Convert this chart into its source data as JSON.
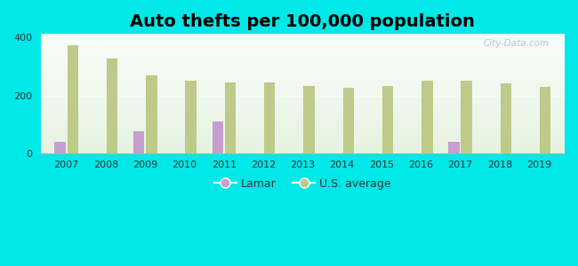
{
  "title": "Auto thefts per 100,000 population",
  "years": [
    2007,
    2008,
    2009,
    2010,
    2011,
    2012,
    2013,
    2014,
    2015,
    2016,
    2017,
    2018,
    2019
  ],
  "lamar": [
    40,
    0,
    78,
    0,
    112,
    0,
    0,
    0,
    0,
    0,
    42,
    0,
    0
  ],
  "us_avg": [
    372,
    325,
    268,
    250,
    244,
    243,
    232,
    227,
    232,
    250,
    250,
    240,
    228
  ],
  "lamar_color": "#c89ed0",
  "us_avg_color": "#bfc98a",
  "background_top": "#f0f8f0",
  "background_bottom": "#d0f0d8",
  "outer_background": "#00e8e8",
  "ylim": [
    0,
    410
  ],
  "yticks": [
    0,
    200,
    400
  ],
  "bar_width": 0.28,
  "title_fontsize": 14,
  "watermark": "City-Data.com"
}
